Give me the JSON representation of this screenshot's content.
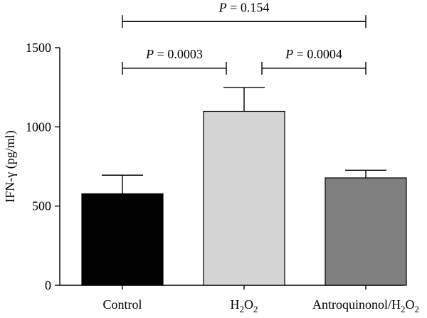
{
  "chart_data": {
    "type": "bar",
    "categories": [
      "Control",
      "H2O2",
      "Antroquinonol/H2O2"
    ],
    "category_labels": [
      {
        "main": "Control",
        "parts": []
      },
      {
        "main": "",
        "parts": [
          {
            "t": "H",
            "sub": false
          },
          {
            "t": "2",
            "sub": true
          },
          {
            "t": "O",
            "sub": false
          },
          {
            "t": "2",
            "sub": true
          }
        ]
      },
      {
        "main": "",
        "parts": [
          {
            "t": "Antroquinonol/H",
            "sub": false
          },
          {
            "t": "2",
            "sub": true
          },
          {
            "t": "O",
            "sub": false
          },
          {
            "t": "2",
            "sub": true
          }
        ]
      }
    ],
    "values": [
      578,
      1098,
      678
    ],
    "errors": [
      117,
      150,
      48
    ],
    "colors": [
      "#000000",
      "#d4d4d4",
      "#808080"
    ],
    "ylabel": "IFN-γ (pg/ml)",
    "ylim": [
      0,
      1500
    ],
    "yticks": [
      0,
      500,
      1000,
      1500
    ],
    "grid": false,
    "significance": [
      {
        "from": 0,
        "to": 2,
        "label_p": "P",
        "label_rest": " = 0.154",
        "value": 1665
      },
      {
        "from": 0,
        "to": 1,
        "label_p": "P",
        "label_rest": " = 0.0003",
        "value": 1370
      },
      {
        "from": 1,
        "to": 2,
        "label_p": "P",
        "label_rest": " = 0.0004",
        "value": 1370
      }
    ]
  }
}
